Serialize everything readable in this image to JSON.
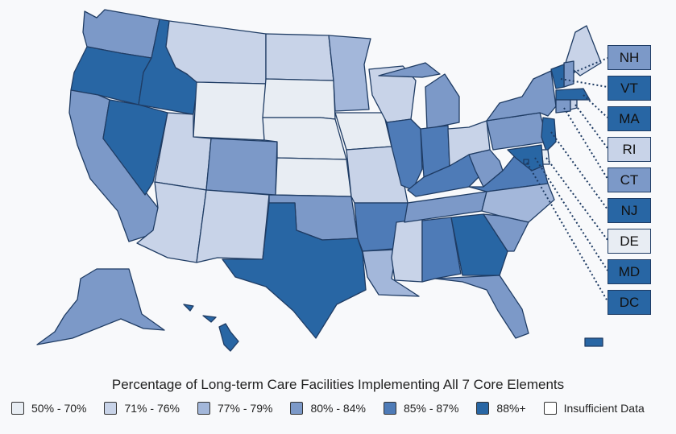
{
  "title": "Percentage of Long-term Care Facilities Implementing All 7 Core Elements",
  "legend": [
    {
      "label": "50% - 70%",
      "color": "#e8edf3"
    },
    {
      "label": "71% - 76%",
      "color": "#c8d3e8"
    },
    {
      "label": "77% - 79%",
      "color": "#a3b7da"
    },
    {
      "label": "80% - 84%",
      "color": "#7c99c8"
    },
    {
      "label": "85% - 87%",
      "color": "#4e7bb7"
    },
    {
      "label": "88%+",
      "color": "#2866a4"
    },
    {
      "label": "Insufficient Data",
      "color": "#ffffff"
    }
  ],
  "callouts": [
    {
      "label": "NH",
      "color": "#7c99c8"
    },
    {
      "label": "VT",
      "color": "#2866a4"
    },
    {
      "label": "MA",
      "color": "#2866a4"
    },
    {
      "label": "RI",
      "color": "#c8d3e8"
    },
    {
      "label": "CT",
      "color": "#7c99c8"
    },
    {
      "label": "NJ",
      "color": "#2866a4"
    },
    {
      "label": "DE",
      "color": "#e8edf3"
    },
    {
      "label": "MD",
      "color": "#2866a4"
    },
    {
      "label": "DC",
      "color": "#2866a4"
    }
  ],
  "states": [
    {
      "name": "WA",
      "color": "#7c99c8"
    },
    {
      "name": "OR",
      "color": "#2866a4"
    },
    {
      "name": "CA",
      "color": "#7c99c8"
    },
    {
      "name": "ID",
      "color": "#2866a4"
    },
    {
      "name": "NV",
      "color": "#2866a4"
    },
    {
      "name": "MT",
      "color": "#c8d3e8"
    },
    {
      "name": "WY",
      "color": "#e8edf3"
    },
    {
      "name": "UT",
      "color": "#c8d3e8"
    },
    {
      "name": "AZ",
      "color": "#c8d3e8"
    },
    {
      "name": "CO",
      "color": "#7c99c8"
    },
    {
      "name": "NM",
      "color": "#c8d3e8"
    },
    {
      "name": "ND",
      "color": "#c8d3e8"
    },
    {
      "name": "SD",
      "color": "#e8edf3"
    },
    {
      "name": "NE",
      "color": "#e8edf3"
    },
    {
      "name": "KS",
      "color": "#e8edf3"
    },
    {
      "name": "OK",
      "color": "#7c99c8"
    },
    {
      "name": "TX",
      "color": "#2866a4"
    },
    {
      "name": "MN",
      "color": "#a3b7da"
    },
    {
      "name": "IA",
      "color": "#e8edf3"
    },
    {
      "name": "MO",
      "color": "#c8d3e8"
    },
    {
      "name": "AR",
      "color": "#4e7bb7"
    },
    {
      "name": "LA",
      "color": "#a3b7da"
    },
    {
      "name": "WI",
      "color": "#c8d3e8"
    },
    {
      "name": "IL",
      "color": "#4e7bb7"
    },
    {
      "name": "MS",
      "color": "#c8d3e8"
    },
    {
      "name": "MI",
      "color": "#7c99c8"
    },
    {
      "name": "IN",
      "color": "#4e7bb7"
    },
    {
      "name": "KY",
      "color": "#4e7bb7"
    },
    {
      "name": "TN",
      "color": "#7c99c8"
    },
    {
      "name": "AL",
      "color": "#4e7bb7"
    },
    {
      "name": "GA",
      "color": "#2866a4"
    },
    {
      "name": "FL",
      "color": "#7c99c8"
    },
    {
      "name": "OH",
      "color": "#c8d3e8"
    },
    {
      "name": "WV",
      "color": "#7c99c8"
    },
    {
      "name": "VA",
      "color": "#4e7bb7"
    },
    {
      "name": "NC",
      "color": "#a3b7da"
    },
    {
      "name": "SC",
      "color": "#7c99c8"
    },
    {
      "name": "PA",
      "color": "#7c99c8"
    },
    {
      "name": "NY",
      "color": "#7c99c8"
    },
    {
      "name": "ME",
      "color": "#c8d3e8"
    },
    {
      "name": "NH",
      "color": "#7c99c8"
    },
    {
      "name": "VT",
      "color": "#2866a4"
    },
    {
      "name": "MA",
      "color": "#2866a4"
    },
    {
      "name": "CT",
      "color": "#7c99c8"
    },
    {
      "name": "RI",
      "color": "#c8d3e8"
    },
    {
      "name": "NJ",
      "color": "#2866a4"
    },
    {
      "name": "DE",
      "color": "#e8edf3"
    },
    {
      "name": "MD",
      "color": "#2866a4"
    },
    {
      "name": "DC",
      "color": "#2866a4"
    },
    {
      "name": "AK",
      "color": "#7c99c8"
    },
    {
      "name": "HI",
      "color": "#2866a4"
    },
    {
      "name": "PR",
      "color": "#2866a4"
    }
  ]
}
